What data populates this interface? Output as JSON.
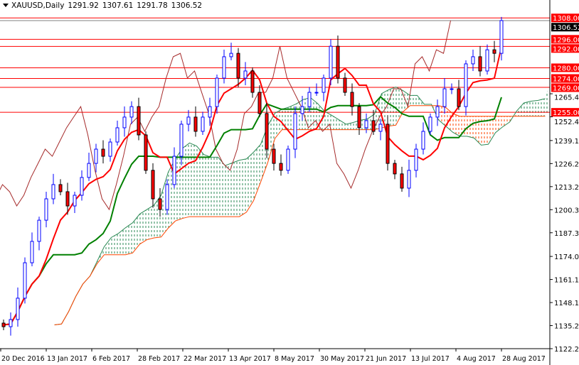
{
  "header": {
    "symbol": "XAUUSD,Daily",
    "open": "1291.92",
    "high": "1307.61",
    "low": "1291.78",
    "close": "1306.52"
  },
  "chart_data": {
    "type": "candlestick",
    "title": "XAUUSD,Daily",
    "indicators": [
      "Ichimoku Kinko Hyo"
    ],
    "ylim": [
      1122.25,
      1313
    ],
    "y_ticks": [
      "1265.40",
      "1252.45",
      "1239.15",
      "1226.20",
      "1213.25",
      "1200.30",
      "1187.35",
      "1174.05",
      "1161.10",
      "1148.15",
      "1135.20",
      "1122.25"
    ],
    "x_ticks": [
      "20 Dec 2016",
      "13 Jan 2017",
      "6 Feb 2017",
      "28 Feb 2017",
      "22 Mar 2017",
      "13 Apr 2017",
      "8 May 2017",
      "30 May 2017",
      "21 Jun 2017",
      "13 Jul 2017",
      "4 Aug 2017",
      "28 Aug 2017"
    ],
    "closes": [
      1134.6,
      1138.6,
      1150.6,
      1170.5,
      1182.5,
      1194.4,
      1206.4,
      1214.4,
      1210.4,
      1202.4,
      1208.4,
      1218.4,
      1226.3,
      1234.3,
      1230.3,
      1238.3,
      1246.3,
      1252.3,
      1258.2,
      1242.3,
      1222.4,
      1206.4,
      1200.4,
      1214.4,
      1230.3,
      1248.3,
      1252.3,
      1244.3,
      1252.3,
      1258.2,
      1274.2,
      1286.2,
      1288.1,
      1274.2,
      1278.2,
      1266.2,
      1254.3,
      1234.3,
      1226.3,
      1222.4,
      1234.3,
      1254.3,
      1258.2,
      1266.2,
      1266.2,
      1274.2,
      1292.1,
      1274.2,
      1266.2,
      1258.2,
      1246.3,
      1250.3,
      1244.3,
      1248.3,
      1226.3,
      1220.4,
      1212.4,
      1222.4,
      1234.3,
      1244.3,
      1252.3,
      1258.2,
      1268.2,
      1268.2,
      1258.2,
      1282.2,
      1286.2,
      1278.2,
      1290.1,
      1288.1,
      1306.52
    ],
    "levels": [
      {
        "label": "1308.00",
        "value": 1308.0
      },
      {
        "label": "1296.00",
        "value": 1296.0
      },
      {
        "label": "1292.00",
        "value": 1292.0
      },
      {
        "label": "1280.00",
        "value": 1280.0
      },
      {
        "label": "1274.00",
        "value": 1274.0
      },
      {
        "label": "1269.00",
        "value": 1269.0
      },
      {
        "label": "1255.00",
        "value": 1255.0
      }
    ],
    "current_price": {
      "label": "1306.52",
      "value": 1306.52
    },
    "colors": {
      "bull": "#0000ff",
      "bear": "#ff0000",
      "tenkan": "#ff0000",
      "kijun": "#008000",
      "chikou": "#a52a2a",
      "cloud_bear": "#ff4500",
      "cloud_bull": "#2e8b57",
      "level": "#ff0000"
    }
  }
}
